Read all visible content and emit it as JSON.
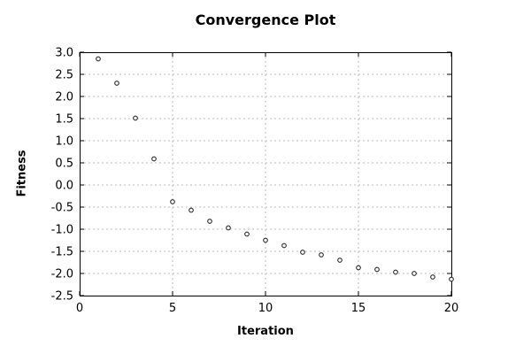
{
  "title": "Convergence Plot",
  "chart_data": {
    "type": "scatter",
    "title": "Convergence Plot",
    "xlabel": "Iteration",
    "ylabel": "Fitness",
    "x": [
      1,
      2,
      3,
      4,
      5,
      6,
      7,
      8,
      9,
      10,
      11,
      12,
      13,
      14,
      15,
      16,
      17,
      18,
      19,
      20
    ],
    "y": [
      2.85,
      2.3,
      1.51,
      0.59,
      -0.38,
      -0.57,
      -0.82,
      -0.97,
      -1.11,
      -1.25,
      -1.37,
      -1.52,
      -1.58,
      -1.7,
      -1.87,
      -1.91,
      -1.97,
      -2.0,
      -2.08,
      -2.13
    ],
    "xlim": [
      0,
      20
    ],
    "ylim": [
      -2.5,
      3.0
    ],
    "x_ticks": [
      0,
      5,
      10,
      15,
      20
    ],
    "x_tick_labels": [
      "0",
      "5",
      "10",
      "15",
      "20"
    ],
    "y_ticks": [
      3.0,
      2.5,
      2.0,
      1.5,
      1.0,
      0.5,
      0.0,
      -0.5,
      -1.0,
      -1.5,
      -2.0,
      -2.5
    ],
    "y_tick_labels": [
      "3.0",
      "2.5",
      "2.0",
      "1.5",
      "1.0",
      "0.5",
      "0.0",
      "-0.5",
      "-1.0",
      "-1.5",
      "-2.0",
      "-2.5"
    ],
    "grid": true,
    "legend": "none",
    "marker": "open-circle",
    "colors": {
      "marker": "#2a2a2a",
      "grid": "#bbbbbb",
      "frame": "#000000",
      "text": "#000000",
      "background": "#ffffff"
    }
  }
}
